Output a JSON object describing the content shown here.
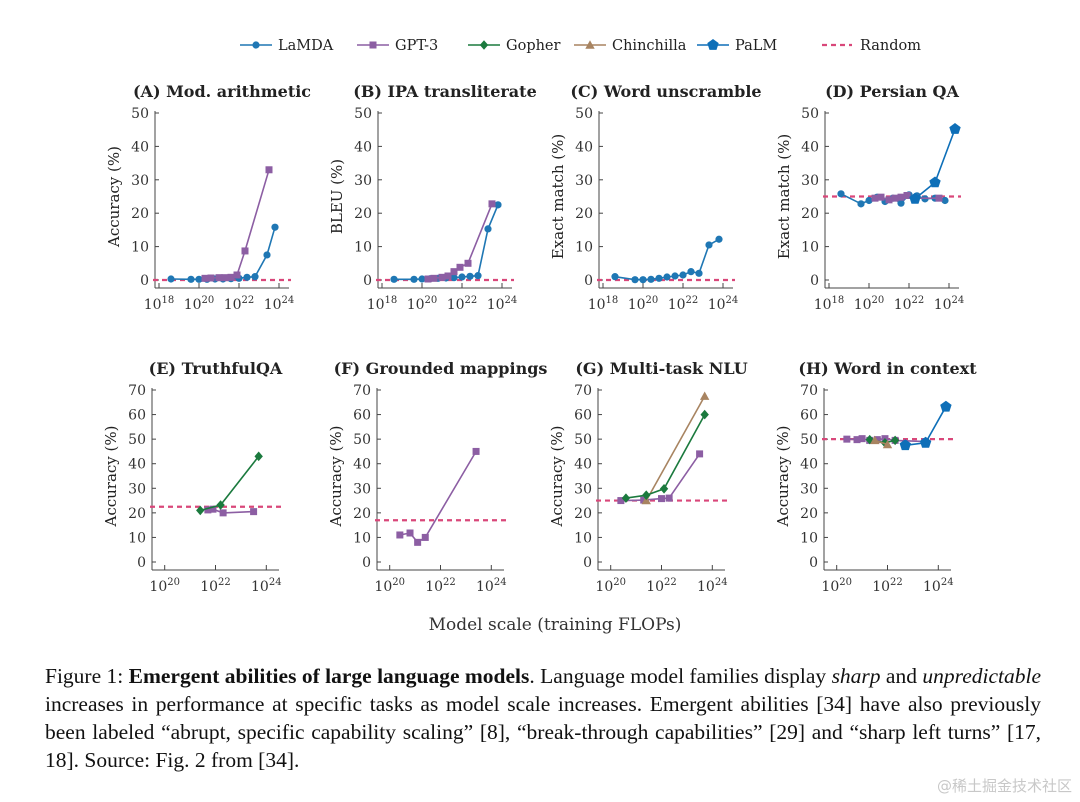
{
  "legend": [
    {
      "name": "LaMDA",
      "color": "#1f77b4",
      "marker": "circle"
    },
    {
      "name": "GPT-3",
      "color": "#8c5ea3",
      "marker": "square"
    },
    {
      "name": "Gopher",
      "color": "#1b7a3e",
      "marker": "diamond"
    },
    {
      "name": "Chinchilla",
      "color": "#a88461",
      "marker": "triangle"
    },
    {
      "name": "PaLM",
      "color": "#0e6fb8",
      "marker": "pentagon"
    },
    {
      "name": "Random",
      "color": "#d9477a",
      "marker": "dashed"
    }
  ],
  "xlabel": "Model scale (training FLOPs)",
  "chart_data": [
    {
      "type": "line",
      "title": "(A) Mod. arithmetic",
      "ylabel": "Accuracy (%)",
      "xscale": "log",
      "xlim": [
        17.8,
        24.5
      ],
      "ylim": [
        0,
        50
      ],
      "yticks": [
        0,
        10,
        20,
        30,
        40,
        50
      ],
      "xticks": [
        18,
        20,
        22,
        24
      ],
      "random": 0,
      "series": [
        {
          "name": "LaMDA",
          "x": [
            18.6,
            19.6,
            20.0,
            20.4,
            20.8,
            21.2,
            21.6,
            22.0,
            22.4,
            22.8,
            23.4,
            23.8
          ],
          "y": [
            0.3,
            0.2,
            0.2,
            0.2,
            0.3,
            0.3,
            0.4,
            0.5,
            0.8,
            1.0,
            7.5,
            15.8
          ]
        },
        {
          "name": "GPT-3",
          "x": [
            20.3,
            20.6,
            21.0,
            21.3,
            21.6,
            21.9,
            22.3,
            23.5
          ],
          "y": [
            0.5,
            0.6,
            0.7,
            0.7,
            0.8,
            1.5,
            8.7,
            33.0
          ]
        }
      ]
    },
    {
      "type": "line",
      "title": "(B) IPA transliterate",
      "ylabel": "BLEU (%)",
      "xscale": "log",
      "xlim": [
        17.8,
        24.5
      ],
      "ylim": [
        0,
        50
      ],
      "yticks": [
        0,
        10,
        20,
        30,
        40,
        50
      ],
      "xticks": [
        18,
        20,
        22,
        24
      ],
      "random": 0,
      "series": [
        {
          "name": "LaMDA",
          "x": [
            18.6,
            19.6,
            20.0,
            20.4,
            20.8,
            21.2,
            21.6,
            22.0,
            22.4,
            22.8,
            23.3,
            23.8
          ],
          "y": [
            0.2,
            0.2,
            0.3,
            0.4,
            0.5,
            0.6,
            0.7,
            0.9,
            1.1,
            1.3,
            15.3,
            22.5
          ]
        },
        {
          "name": "GPT-3",
          "x": [
            20.3,
            20.6,
            21.0,
            21.3,
            21.6,
            21.9,
            22.3,
            23.5
          ],
          "y": [
            0.3,
            0.5,
            0.8,
            1.2,
            2.5,
            3.8,
            5.0,
            22.8
          ]
        }
      ]
    },
    {
      "type": "line",
      "title": "(C) Word unscramble",
      "ylabel": "Exact match (%)",
      "xscale": "log",
      "xlim": [
        17.8,
        24.5
      ],
      "ylim": [
        0,
        50
      ],
      "yticks": [
        0,
        10,
        20,
        30,
        40,
        50
      ],
      "xticks": [
        18,
        20,
        22,
        24
      ],
      "random": 0,
      "series": [
        {
          "name": "LaMDA",
          "x": [
            18.6,
            19.6,
            20.0,
            20.4,
            20.8,
            21.2,
            21.6,
            22.0,
            22.4,
            22.8,
            23.3,
            23.8
          ],
          "y": [
            1.0,
            0.1,
            0.1,
            0.2,
            0.5,
            0.9,
            1.2,
            1.5,
            2.5,
            2.0,
            10.5,
            12.2
          ]
        }
      ]
    },
    {
      "type": "line",
      "title": "(D) Persian QA",
      "ylabel": "Exact match (%)",
      "xscale": "log",
      "xlim": [
        17.8,
        24.5
      ],
      "ylim": [
        0,
        50
      ],
      "yticks": [
        0,
        10,
        20,
        30,
        40,
        50
      ],
      "xticks": [
        18,
        20,
        22,
        24
      ],
      "random": 25,
      "series": [
        {
          "name": "LaMDA",
          "x": [
            18.6,
            19.6,
            20.0,
            20.4,
            20.8,
            21.2,
            21.6,
            22.0,
            22.4,
            22.8,
            23.3,
            23.8
          ],
          "y": [
            25.8,
            22.8,
            23.8,
            24.8,
            23.5,
            24.5,
            23.0,
            25.5,
            25.2,
            24.3,
            24.5,
            23.8
          ]
        },
        {
          "name": "GPT-3",
          "x": [
            20.3,
            20.6,
            21.0,
            21.3,
            21.6,
            21.9,
            22.3,
            23.5
          ],
          "y": [
            24.5,
            24.8,
            24.0,
            24.5,
            24.8,
            25.3,
            24.5,
            24.5
          ]
        },
        {
          "name": "PaLM",
          "x": [
            22.3,
            23.3,
            24.3
          ],
          "y": [
            24.3,
            29.2,
            45.2
          ]
        }
      ]
    },
    {
      "type": "line",
      "title": "(E) TruthfulQA",
      "ylabel": "Accuracy (%)",
      "xscale": "log",
      "xlim": [
        19.5,
        24.5
      ],
      "ylim": [
        0,
        70
      ],
      "yticks": [
        0,
        10,
        20,
        30,
        40,
        50,
        60,
        70
      ],
      "xticks": [
        20,
        22,
        24
      ],
      "random": 22.5,
      "series": [
        {
          "name": "GPT-3",
          "x": [
            21.7,
            21.9,
            22.3,
            23.5
          ],
          "y": [
            21.2,
            21.5,
            20.0,
            20.5
          ]
        },
        {
          "name": "Gopher",
          "x": [
            21.4,
            22.2,
            23.7
          ],
          "y": [
            21.0,
            23.2,
            43.0
          ]
        }
      ]
    },
    {
      "type": "line",
      "title": "(F) Grounded mappings",
      "ylabel": "Accuracy (%)",
      "xscale": "log",
      "xlim": [
        19.5,
        24.5
      ],
      "ylim": [
        0,
        70
      ],
      "yticks": [
        0,
        10,
        20,
        30,
        40,
        50,
        60,
        70
      ],
      "xticks": [
        20,
        22,
        24
      ],
      "random": 17,
      "series": [
        {
          "name": "GPT-3",
          "x": [
            20.4,
            20.8,
            21.1,
            21.4,
            23.4
          ],
          "y": [
            11.0,
            11.8,
            8.0,
            10.0,
            45.0
          ]
        }
      ]
    },
    {
      "type": "line",
      "title": "(G) Multi-task NLU",
      "ylabel": "Accuracy (%)",
      "xscale": "log",
      "xlim": [
        19.5,
        24.5
      ],
      "ylim": [
        0,
        70
      ],
      "yticks": [
        0,
        10,
        20,
        30,
        40,
        50,
        60,
        70
      ],
      "xticks": [
        20,
        22,
        24
      ],
      "random": 25,
      "series": [
        {
          "name": "GPT-3",
          "x": [
            20.4,
            21.3,
            22.0,
            22.3,
            23.5
          ],
          "y": [
            25.0,
            25.2,
            25.8,
            26.0,
            44.0
          ]
        },
        {
          "name": "Chinchilla",
          "x": [
            21.4,
            23.7
          ],
          "y": [
            25.0,
            67.5
          ]
        },
        {
          "name": "Gopher",
          "x": [
            20.6,
            21.4,
            22.1,
            23.7
          ],
          "y": [
            26.0,
            27.2,
            29.8,
            60.0
          ]
        }
      ]
    },
    {
      "type": "line",
      "title": "(H) Word in context",
      "ylabel": "Accuracy (%)",
      "xscale": "log",
      "xlim": [
        19.5,
        24.5
      ],
      "ylim": [
        0,
        70
      ],
      "yticks": [
        0,
        10,
        20,
        30,
        40,
        50,
        60,
        70
      ],
      "xticks": [
        20,
        22,
        24
      ],
      "random": 50,
      "series": [
        {
          "name": "GPT-3",
          "x": [
            20.4,
            20.8,
            21.0,
            21.3,
            21.6,
            21.9,
            22.3,
            23.5
          ],
          "y": [
            50.0,
            49.8,
            50.2,
            49.5,
            49.8,
            50.2,
            49.5,
            49.0
          ]
        },
        {
          "name": "Gopher",
          "x": [
            21.3,
            21.9,
            22.3
          ],
          "y": [
            49.8,
            48.5,
            49.5
          ]
        },
        {
          "name": "Chinchilla",
          "x": [
            21.5,
            22.0
          ],
          "y": [
            49.5,
            47.8
          ]
        },
        {
          "name": "PaLM",
          "x": [
            22.7,
            23.5,
            24.3
          ],
          "y": [
            47.5,
            48.5,
            63.2
          ]
        }
      ]
    }
  ],
  "caption": {
    "label": "Figure 1: ",
    "bold": "Emergent abilities of large language models",
    "p1": ". Language model families display ",
    "i1": "sharp",
    "p2": " and ",
    "i2": "unpredictable",
    "p3": " increases in performance at specific tasks as model scale increases. Emergent abilities [34] have also previously been labeled “abrupt, specific capability scaling” [8], “break-through capabilities” [29] and “sharp left turns” [17, 18]. Source: Fig. 2 from [34]."
  },
  "watermark": "@稀土掘金技术社区"
}
